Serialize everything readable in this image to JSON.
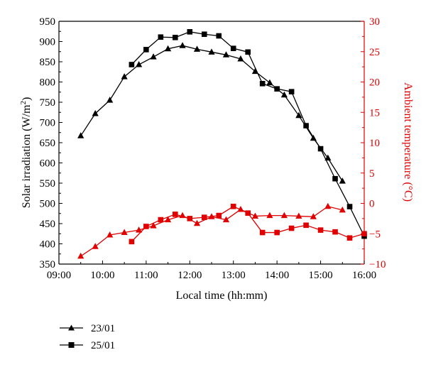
{
  "chart_data": {
    "type": "line",
    "xlabel": "Local time (hh:mm)",
    "ylabel_left_main": "Solar irradiation (W/m",
    "ylabel_left_sup": "2",
    "ylabel_left_end": ")",
    "ylabel_right": "Ambient temperature (°C)",
    "x_ticks": [
      "09:00",
      "10:00",
      "11:00",
      "12:00",
      "13:00",
      "14:00",
      "15:00",
      "16:00"
    ],
    "y_left_ticks": [
      "350",
      "400",
      "450",
      "500",
      "550",
      "600",
      "650",
      "700",
      "750",
      "800",
      "850",
      "900",
      "950"
    ],
    "y_right_ticks": [
      "−10",
      "−5",
      "0",
      "5",
      "10",
      "15",
      "20",
      "25",
      "30"
    ],
    "xlim_hours": [
      9.0,
      16.0
    ],
    "ylim_left": [
      350,
      950
    ],
    "ylim_right": [
      -10,
      30
    ],
    "colors": {
      "irradiation": "#000000",
      "temperature": "#e00000",
      "right_axis": "#e00000"
    },
    "series": [
      {
        "name": "23/01",
        "marker": "triangle",
        "axis": "left",
        "color": "#000000",
        "x": [
          "09:30",
          "09:50",
          "10:10",
          "10:30",
          "10:50",
          "11:10",
          "11:30",
          "11:50",
          "12:10",
          "12:30",
          "12:50",
          "13:10",
          "13:30",
          "13:50",
          "14:10",
          "14:30",
          "14:50",
          "15:10",
          "15:30"
        ],
        "y": [
          667,
          722,
          755,
          813,
          843,
          862,
          882,
          890,
          881,
          874,
          867,
          857,
          826,
          798,
          768,
          717,
          661,
          612,
          555
        ]
      },
      {
        "name": "25/01",
        "marker": "square",
        "axis": "left",
        "color": "#000000",
        "x": [
          "10:40",
          "11:00",
          "11:20",
          "11:40",
          "12:00",
          "12:20",
          "12:40",
          "13:00",
          "13:20",
          "13:40",
          "14:00",
          "14:20",
          "14:40",
          "15:00",
          "15:20",
          "15:40",
          "16:00"
        ],
        "y": [
          843,
          880,
          911,
          910,
          924,
          918,
          914,
          883,
          874,
          796,
          783,
          776,
          692,
          635,
          561,
          492,
          419
        ]
      },
      {
        "name": "23/01",
        "marker": "triangle",
        "axis": "right",
        "color": "#e00000",
        "x": [
          "09:30",
          "09:50",
          "10:10",
          "10:30",
          "10:50",
          "11:10",
          "11:30",
          "11:50",
          "12:10",
          "12:30",
          "12:50",
          "13:10",
          "13:30",
          "13:50",
          "14:10",
          "14:30",
          "14:50",
          "15:10",
          "15:30"
        ],
        "y": [
          -8.7,
          -7.1,
          -5.2,
          -4.8,
          -4.4,
          -3.7,
          -2.7,
          -2.0,
          -3.3,
          -2.2,
          -2.7,
          -1.0,
          -2.1,
          -2.0,
          -2.0,
          -2.1,
          -2.2,
          -0.5,
          -1.1
        ]
      },
      {
        "name": "25/01",
        "marker": "square",
        "axis": "right",
        "color": "#e00000",
        "x": [
          "10:40",
          "11:00",
          "11:20",
          "11:40",
          "12:00",
          "12:20",
          "12:40",
          "13:00",
          "13:20",
          "13:40",
          "14:00",
          "14:20",
          "14:40",
          "15:00",
          "15:20",
          "15:40",
          "16:00"
        ],
        "y": [
          -6.3,
          -3.8,
          -2.7,
          -1.8,
          -2.5,
          -2.3,
          -2.0,
          -0.5,
          -1.6,
          -4.8,
          -4.8,
          -4.1,
          -3.6,
          -4.4,
          -4.7,
          -5.7,
          -5.0
        ]
      }
    ],
    "legend": [
      {
        "label": "23/01",
        "marker": "triangle"
      },
      {
        "label": "25/01",
        "marker": "square"
      }
    ]
  }
}
